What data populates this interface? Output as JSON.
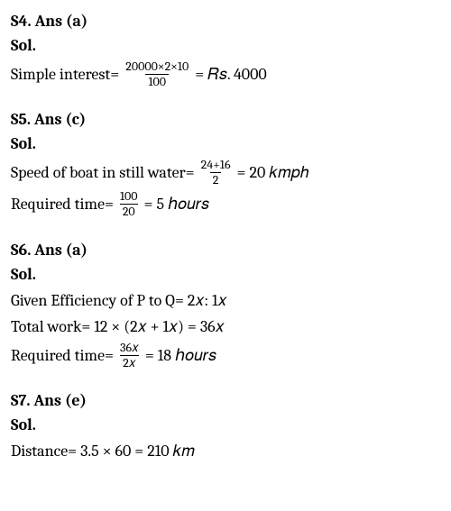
{
  "s4": {
    "heading": "S4. Ans (a)",
    "sol": "Sol.",
    "line1_pre": "Simple interest=",
    "frac_num": "20000×2×10",
    "frac_den": "100",
    "line1_post": "= 𝑅𝑠. 4000"
  },
  "s5": {
    "heading": "S5. Ans (c)",
    "sol": "Sol.",
    "line1_pre": "Speed of boat in still water=",
    "frac1_num": "24+16",
    "frac1_den": "2",
    "line1_post": "= 20 𝑘𝑚𝑝ℎ",
    "line2_pre": "Required time=",
    "frac2_num": "100",
    "frac2_den": "20",
    "line2_post": "= 5 ℎ𝑜𝑢𝑟𝑠"
  },
  "s6": {
    "heading": "S6. Ans (a)",
    "sol": "Sol.",
    "line1": "Given Efficiency of P to Q= 2𝑥: 1𝑥",
    "line2": "Total work= 12 × (2𝑥 + 1𝑥) = 36𝑥",
    "line3_pre": "Required time=",
    "frac_num": "36𝑥",
    "frac_den": "2𝑥",
    "line3_post": "= 18 ℎ𝑜𝑢𝑟𝑠"
  },
  "s7": {
    "heading": "S7. Ans (e)",
    "sol": "Sol.",
    "line1": "Distance= 3.5 × 60 = 210 𝑘𝑚"
  }
}
